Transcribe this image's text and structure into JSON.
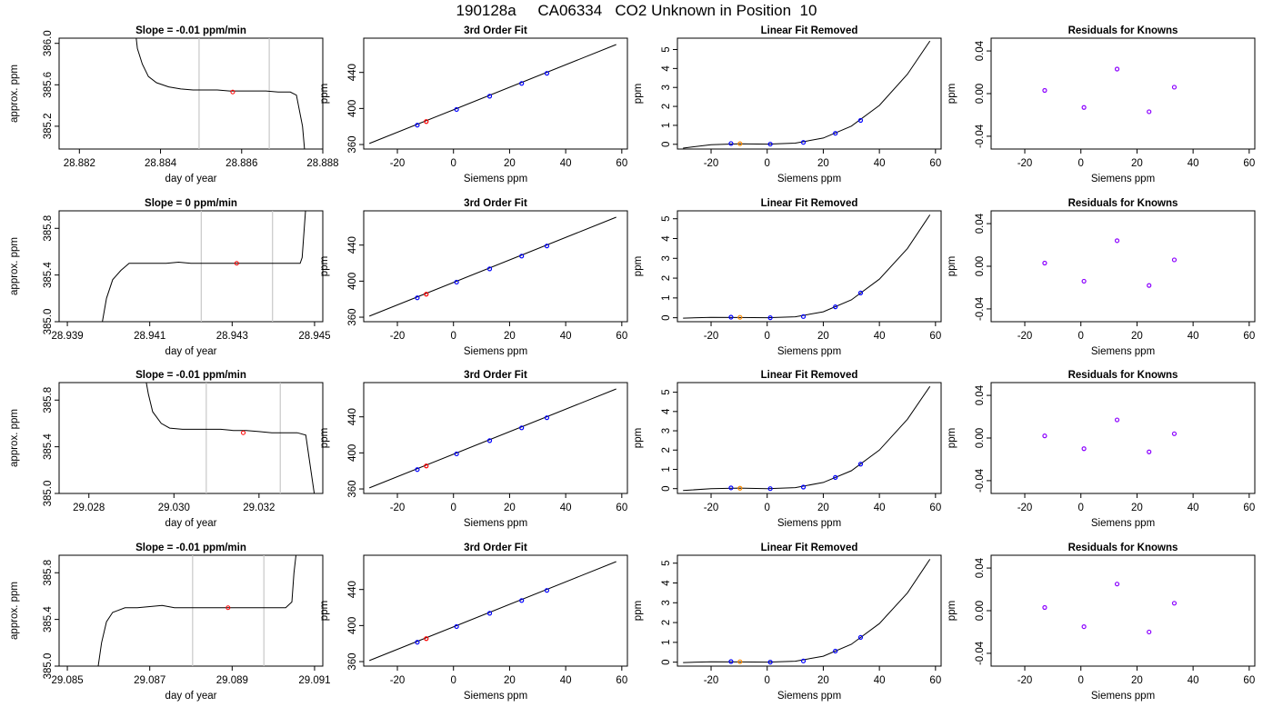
{
  "page": {
    "title": "190128a     CA06334   CO2 Unknown in Position  10"
  },
  "colors": {
    "frame": "#000000",
    "bound_line": "#c8c8c8",
    "trace": "#000000",
    "known_point": "#0000ff",
    "unknown_point": "#ff0000",
    "unknown_point_lf": "#ff8c00",
    "residual_point": "#8b00ff"
  },
  "chart_data": [
    {
      "type": "line",
      "title": "Slope =  -0.01  ppm/min",
      "xlabel": "day of year",
      "ylabel": "approx. ppm",
      "xlim": [
        28.8815,
        28.888
      ],
      "ylim": [
        384.98,
        386.05
      ],
      "xticks": [
        28.882,
        28.884,
        28.886,
        28.888
      ],
      "yticks": [
        385.2,
        385.6,
        386.0
      ],
      "bounds": [
        28.88495,
        28.88668
      ],
      "unknown_point": [
        28.88578,
        385.53
      ],
      "series": [
        {
          "x": [
            28.8834,
            28.88343,
            28.88355,
            28.8837,
            28.8839,
            28.8842,
            28.8845,
            28.8848,
            28.8851,
            28.8854,
            28.8857,
            28.886,
            28.8863,
            28.8866,
            28.8869,
            28.8872,
            28.88735,
            28.8875,
            28.88755
          ],
          "y": [
            386.05,
            385.95,
            385.8,
            385.68,
            385.62,
            385.58,
            385.56,
            385.55,
            385.55,
            385.55,
            385.54,
            385.54,
            385.54,
            385.54,
            385.53,
            385.53,
            385.5,
            385.2,
            384.98
          ]
        }
      ]
    },
    {
      "type": "scatter",
      "title": "3rd Order Fit",
      "xlabel": "Siemens ppm",
      "ylabel": "ppm",
      "xlim": [
        -32,
        62
      ],
      "ylim": [
        355,
        478
      ],
      "xticks": [
        -20,
        0,
        20,
        40,
        60
      ],
      "yticks": [
        360,
        400,
        440
      ],
      "curve": {
        "x": [
          -30,
          58
        ],
        "y": [
          361.2,
          470.9
        ]
      },
      "knowns": {
        "x": [
          -12.9,
          1.1,
          12.9,
          24.3,
          33.3
        ],
        "y": [
          381.5,
          398.9,
          413.6,
          427.8,
          439.0
        ]
      },
      "unknown": {
        "x": [
          -9.7
        ],
        "y": [
          385.5
        ]
      }
    },
    {
      "type": "line",
      "title": "Linear Fit Removed",
      "xlabel": "Siemens ppm",
      "ylabel": "ppm",
      "xlim": [
        -32,
        62
      ],
      "ylim": [
        -0.25,
        5.6
      ],
      "xticks": [
        -20,
        0,
        20,
        40,
        60
      ],
      "yticks": [
        0,
        1,
        2,
        3,
        4,
        5
      ],
      "curve": {
        "x": [
          -30,
          -20,
          -10,
          0,
          10,
          20,
          30,
          40,
          50,
          58
        ],
        "y": [
          -0.2,
          -0.02,
          0.03,
          0.01,
          0.06,
          0.33,
          0.96,
          2.05,
          3.7,
          5.45
        ]
      },
      "knowns": {
        "x": [
          -12.9,
          1.1,
          12.9,
          24.3,
          33.3
        ],
        "y": [
          0.04,
          0.01,
          0.1,
          0.58,
          1.26
        ]
      },
      "unknown": {
        "x": [
          -9.7
        ],
        "y": [
          0.03
        ]
      }
    },
    {
      "type": "scatter",
      "title": "Residuals for Knowns",
      "xlabel": "Siemens ppm",
      "ylabel": "ppm",
      "xlim": [
        -32,
        62
      ],
      "ylim": [
        -0.052,
        0.052
      ],
      "xticks": [
        -20,
        0,
        20,
        40,
        60
      ],
      "yticks": [
        -0.04,
        0.0,
        0.04
      ],
      "points": {
        "x": [
          -12.9,
          1.1,
          12.9,
          24.3,
          33.3
        ],
        "y": [
          0.003,
          -0.013,
          0.023,
          -0.017,
          0.006
        ]
      }
    },
    {
      "type": "line",
      "title": "Slope =  0  ppm/min",
      "xlabel": "day of year",
      "ylabel": "approx. ppm",
      "xlim": [
        28.9388,
        28.9452
      ],
      "ylim": [
        385.0,
        385.95
      ],
      "xticks": [
        28.939,
        28.941,
        28.943,
        28.945
      ],
      "yticks": [
        385.0,
        385.4,
        385.8
      ],
      "bounds": [
        28.94225,
        28.94398
      ],
      "unknown_point": [
        28.94311,
        385.5
      ],
      "series": [
        {
          "x": [
            28.93985,
            28.93995,
            28.9401,
            28.9403,
            28.9405,
            28.9408,
            28.9411,
            28.9414,
            28.9417,
            28.942,
            28.9423,
            28.9426,
            28.9429,
            28.9432,
            28.9435,
            28.9438,
            28.9441,
            28.9444,
            28.94465,
            28.9447,
            28.94475,
            28.94478
          ],
          "y": [
            385.0,
            385.2,
            385.36,
            385.44,
            385.5,
            385.5,
            385.5,
            385.5,
            385.51,
            385.5,
            385.5,
            385.5,
            385.5,
            385.5,
            385.5,
            385.5,
            385.5,
            385.5,
            385.5,
            385.55,
            385.8,
            385.95
          ]
        }
      ]
    },
    {
      "type": "scatter",
      "title": "3rd Order Fit",
      "xlabel": "Siemens ppm",
      "ylabel": "ppm",
      "xlim": [
        -32,
        62
      ],
      "ylim": [
        355,
        478
      ],
      "xticks": [
        -20,
        0,
        20,
        40,
        60
      ],
      "yticks": [
        360,
        400,
        440
      ],
      "curve": {
        "x": [
          -30,
          58
        ],
        "y": [
          361.2,
          470.9
        ]
      },
      "knowns": {
        "x": [
          -12.9,
          1.1,
          12.9,
          24.3,
          33.3
        ],
        "y": [
          381.5,
          398.9,
          413.6,
          427.8,
          439.0
        ]
      },
      "unknown": {
        "x": [
          -9.7
        ],
        "y": [
          385.5
        ]
      }
    },
    {
      "type": "line",
      "title": "Linear Fit Removed",
      "xlabel": "Siemens ppm",
      "ylabel": "ppm",
      "xlim": [
        -32,
        62
      ],
      "ylim": [
        -0.2,
        5.4
      ],
      "xticks": [
        -20,
        0,
        20,
        40,
        60
      ],
      "yticks": [
        0,
        1,
        2,
        3,
        4,
        5
      ],
      "curve": {
        "x": [
          -30,
          -20,
          -10,
          0,
          10,
          20,
          30,
          40,
          50,
          58
        ],
        "y": [
          -0.02,
          0.02,
          0.01,
          0.0,
          0.05,
          0.3,
          0.9,
          1.95,
          3.5,
          5.2
        ]
      },
      "knowns": {
        "x": [
          -12.9,
          1.1,
          12.9,
          24.3,
          33.3
        ],
        "y": [
          0.03,
          0.0,
          0.06,
          0.55,
          1.25
        ]
      },
      "unknown": {
        "x": [
          -9.7
        ],
        "y": [
          0.02
        ]
      }
    },
    {
      "type": "scatter",
      "title": "Residuals for Knowns",
      "xlabel": "Siemens ppm",
      "ylabel": "ppm",
      "xlim": [
        -32,
        62
      ],
      "ylim": [
        -0.052,
        0.052
      ],
      "xticks": [
        -20,
        0,
        20,
        40,
        60
      ],
      "yticks": [
        -0.04,
        0.0,
        0.04
      ],
      "points": {
        "x": [
          -12.9,
          1.1,
          12.9,
          24.3,
          33.3
        ],
        "y": [
          0.003,
          -0.014,
          0.024,
          -0.018,
          0.006
        ]
      }
    },
    {
      "type": "line",
      "title": "Slope =  -0.01  ppm/min",
      "xlabel": "day of year",
      "ylabel": "approx. ppm",
      "xlim": [
        29.0273,
        29.0335
      ],
      "ylim": [
        385.0,
        385.95
      ],
      "xticks": [
        29.028,
        29.03,
        29.032
      ],
      "yticks": [
        385.0,
        385.4,
        385.8
      ],
      "bounds": [
        29.03076,
        29.0325
      ],
      "unknown_point": [
        29.03163,
        385.52
      ],
      "series": [
        {
          "x": [
            29.02935,
            29.0294,
            29.0295,
            29.0297,
            29.0299,
            29.0302,
            29.0305,
            29.0308,
            29.0311,
            29.0314,
            29.0317,
            29.032,
            29.0323,
            29.0326,
            29.0329,
            29.0331,
            29.03318,
            29.0333
          ],
          "y": [
            385.95,
            385.85,
            385.7,
            385.6,
            385.56,
            385.55,
            385.55,
            385.55,
            385.55,
            385.54,
            385.54,
            385.53,
            385.52,
            385.52,
            385.52,
            385.5,
            385.3,
            385.0
          ]
        }
      ]
    },
    {
      "type": "scatter",
      "title": "3rd Order Fit",
      "xlabel": "Siemens ppm",
      "ylabel": "ppm",
      "xlim": [
        -32,
        62
      ],
      "ylim": [
        355,
        478
      ],
      "xticks": [
        -20,
        0,
        20,
        40,
        60
      ],
      "yticks": [
        360,
        400,
        440
      ],
      "curve": {
        "x": [
          -30,
          58
        ],
        "y": [
          361.2,
          470.9
        ]
      },
      "knowns": {
        "x": [
          -12.9,
          1.1,
          12.9,
          24.3,
          33.3
        ],
        "y": [
          381.5,
          398.9,
          413.6,
          427.8,
          439.0
        ]
      },
      "unknown": {
        "x": [
          -9.7
        ],
        "y": [
          385.5
        ]
      }
    },
    {
      "type": "line",
      "title": "Linear Fit Removed",
      "xlabel": "Siemens ppm",
      "ylabel": "ppm",
      "xlim": [
        -32,
        62
      ],
      "ylim": [
        -0.25,
        5.5
      ],
      "xticks": [
        -20,
        0,
        20,
        40,
        60
      ],
      "yticks": [
        0,
        1,
        2,
        3,
        4,
        5
      ],
      "curve": {
        "x": [
          -30,
          -20,
          -10,
          0,
          10,
          20,
          30,
          40,
          50,
          58
        ],
        "y": [
          -0.1,
          0.0,
          0.03,
          0.0,
          0.05,
          0.32,
          0.93,
          2.0,
          3.6,
          5.3
        ]
      },
      "knowns": {
        "x": [
          -12.9,
          1.1,
          12.9,
          24.3,
          33.3
        ],
        "y": [
          0.04,
          0.0,
          0.08,
          0.58,
          1.27
        ]
      },
      "unknown": {
        "x": [
          -9.7
        ],
        "y": [
          0.02
        ]
      }
    },
    {
      "type": "scatter",
      "title": "Residuals for Knowns",
      "xlabel": "Siemens ppm",
      "ylabel": "ppm",
      "xlim": [
        -32,
        62
      ],
      "ylim": [
        -0.052,
        0.052
      ],
      "xticks": [
        -20,
        0,
        20,
        40,
        60
      ],
      "yticks": [
        -0.04,
        0.0,
        0.04
      ],
      "points": {
        "x": [
          -12.9,
          1.1,
          12.9,
          24.3,
          33.3
        ],
        "y": [
          0.002,
          -0.01,
          0.017,
          -0.013,
          0.004
        ]
      }
    },
    {
      "type": "line",
      "title": "Slope =  -0.01  ppm/min",
      "xlabel": "day of year",
      "ylabel": "approx. ppm",
      "xlim": [
        29.0848,
        29.0912
      ],
      "ylim": [
        385.0,
        385.95
      ],
      "xticks": [
        29.085,
        29.087,
        29.089,
        29.091
      ],
      "yticks": [
        385.0,
        385.4,
        385.8
      ],
      "bounds": [
        29.08804,
        29.08977
      ],
      "unknown_point": [
        29.0889,
        385.5
      ],
      "series": [
        {
          "x": [
            29.08575,
            29.08583,
            29.08595,
            29.0861,
            29.0864,
            29.0867,
            29.087,
            29.0873,
            29.0876,
            29.0879,
            29.0882,
            29.0885,
            29.0888,
            29.0891,
            29.0894,
            29.0897,
            29.09,
            29.0903,
            29.09045,
            29.0905,
            29.09055
          ],
          "y": [
            385.0,
            385.2,
            385.38,
            385.46,
            385.5,
            385.5,
            385.51,
            385.52,
            385.5,
            385.5,
            385.5,
            385.5,
            385.5,
            385.5,
            385.5,
            385.5,
            385.5,
            385.5,
            385.55,
            385.8,
            385.95
          ]
        }
      ]
    },
    {
      "type": "scatter",
      "title": "3rd Order Fit",
      "xlabel": "Siemens ppm",
      "ylabel": "ppm",
      "xlim": [
        -32,
        62
      ],
      "ylim": [
        355,
        478
      ],
      "xticks": [
        -20,
        0,
        20,
        40,
        60
      ],
      "yticks": [
        360,
        400,
        440
      ],
      "curve": {
        "x": [
          -30,
          58
        ],
        "y": [
          361.2,
          470.9
        ]
      },
      "knowns": {
        "x": [
          -12.9,
          1.1,
          12.9,
          24.3,
          33.3
        ],
        "y": [
          381.5,
          398.9,
          413.6,
          427.8,
          439.0
        ]
      },
      "unknown": {
        "x": [
          -9.7
        ],
        "y": [
          385.5
        ]
      }
    },
    {
      "type": "line",
      "title": "Linear Fit Removed",
      "xlabel": "Siemens ppm",
      "ylabel": "ppm",
      "xlim": [
        -32,
        62
      ],
      "ylim": [
        -0.2,
        5.4
      ],
      "xticks": [
        -20,
        0,
        20,
        40,
        60
      ],
      "yticks": [
        0,
        1,
        2,
        3,
        4,
        5
      ],
      "curve": {
        "x": [
          -30,
          -20,
          -10,
          0,
          10,
          20,
          30,
          40,
          50,
          58
        ],
        "y": [
          -0.02,
          0.02,
          0.01,
          0.0,
          0.05,
          0.3,
          0.9,
          1.95,
          3.5,
          5.2
        ]
      },
      "knowns": {
        "x": [
          -12.9,
          1.1,
          12.9,
          24.3,
          33.3
        ],
        "y": [
          0.03,
          0.0,
          0.06,
          0.56,
          1.25
        ]
      },
      "unknown": {
        "x": [
          -9.7
        ],
        "y": [
          0.02
        ]
      }
    },
    {
      "type": "scatter",
      "title": "Residuals for Knowns",
      "xlabel": "Siemens ppm",
      "ylabel": "ppm",
      "xlim": [
        -32,
        62
      ],
      "ylim": [
        -0.052,
        0.052
      ],
      "xticks": [
        -20,
        0,
        20,
        40,
        60
      ],
      "yticks": [
        -0.04,
        0.0,
        0.04
      ],
      "points": {
        "x": [
          -12.9,
          1.1,
          12.9,
          24.3,
          33.3
        ],
        "y": [
          0.003,
          -0.015,
          0.025,
          -0.02,
          0.007
        ]
      }
    }
  ]
}
